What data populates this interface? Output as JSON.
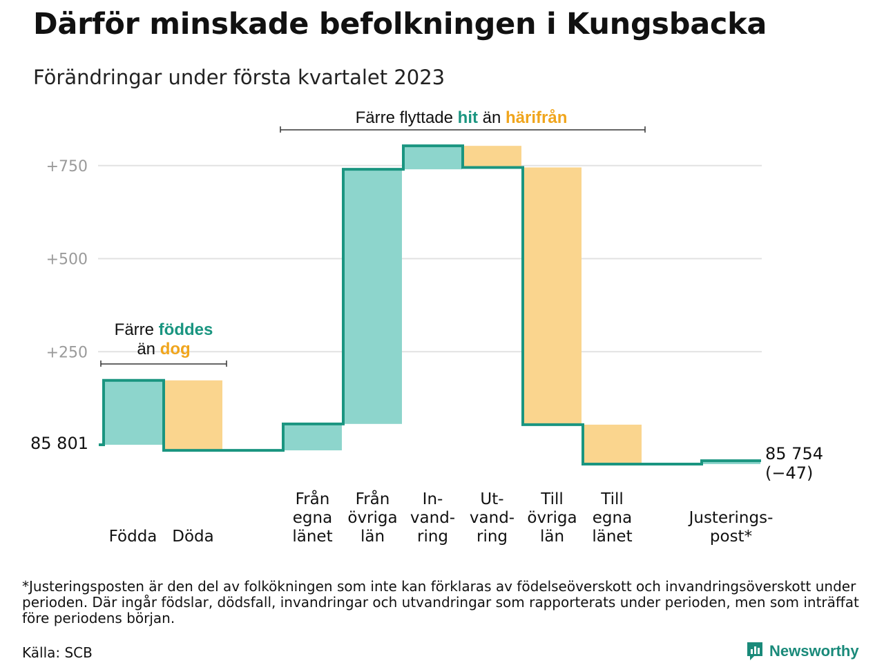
{
  "title": "Därför minskade befolkningen i Kungsbacka",
  "subtitle": "Förändringar under första kvartalet 2023",
  "colors": {
    "inflow": "#8dd5cc",
    "outflow": "#fad58e",
    "line": "#1a9580",
    "teal_text": "#1a9580",
    "orange_text": "#f0a51c",
    "grid": "#e2e2e2",
    "tick_text": "#9a9a9a"
  },
  "chart_data": {
    "type": "waterfall",
    "start_value": 85801,
    "start_label": "85 801",
    "end_value": 85754,
    "end_label": "85 754",
    "end_change_label": "(−47)",
    "yticks": [
      {
        "value": 250,
        "label": "+250"
      },
      {
        "value": 500,
        "label": "+500"
      },
      {
        "value": 750,
        "label": "+750"
      }
    ],
    "ylim": [
      -70,
      800
    ],
    "steps": [
      {
        "category": [
          "Födda"
        ],
        "change": 173,
        "kind": "in"
      },
      {
        "category": [
          "Döda"
        ],
        "change": -188,
        "kind": "out"
      },
      {
        "category": [
          "Från",
          "egna",
          "länet"
        ],
        "change": 71,
        "kind": "in"
      },
      {
        "category": [
          "Från",
          "övriga",
          "län"
        ],
        "change": 684,
        "kind": "in"
      },
      {
        "category": [
          "In-",
          "vand-",
          "ring"
        ],
        "change": 63,
        "kind": "in"
      },
      {
        "category": [
          "Ut-",
          "vand-",
          "ring"
        ],
        "change": -58,
        "kind": "out"
      },
      {
        "category": [
          "Till",
          "övriga",
          "län"
        ],
        "change": -691,
        "kind": "out"
      },
      {
        "category": [
          "Till",
          "egna",
          "länet"
        ],
        "change": -106,
        "kind": "out"
      },
      {
        "category": [
          "Justerings-",
          "post*"
        ],
        "change": 9,
        "kind": "in"
      }
    ],
    "annotations": [
      {
        "id": "births-deaths",
        "line1": [
          {
            "text": "Färre ",
            "style": "plain"
          },
          {
            "text": "föddes",
            "style": "in"
          }
        ],
        "line2": [
          {
            "text": "än ",
            "style": "plain"
          },
          {
            "text": "dog",
            "style": "out"
          }
        ]
      },
      {
        "id": "migration",
        "line1": [
          {
            "text": "Färre flyttade ",
            "style": "plain"
          },
          {
            "text": "hit",
            "style": "in"
          },
          {
            "text": " än ",
            "style": "plain"
          },
          {
            "text": "härifrån",
            "style": "out"
          }
        ]
      }
    ]
  },
  "footnote": "*Justeringsposten är den del av folkökningen som inte kan förklaras av födelseöverskott och invandringsöverskott under perioden. Där ingår födslar, dödsfall, invandringar och utvandringar som rapporterats under perioden, men som inträffat före periodens början.",
  "source": "Källa: SCB",
  "brand": {
    "name": "Newsworthy",
    "icon": "newsworthy-logo-icon"
  }
}
